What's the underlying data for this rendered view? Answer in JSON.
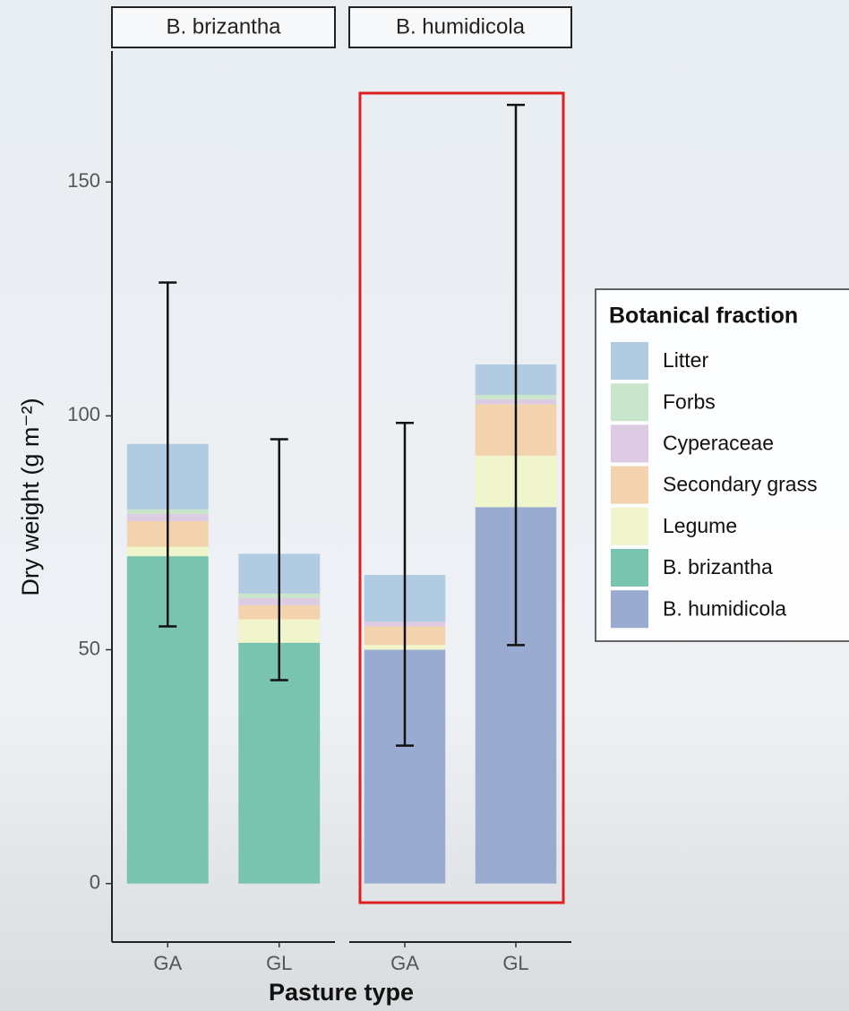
{
  "chart_data": {
    "type": "bar",
    "stacked": true,
    "facet_labels": [
      "B. brizantha",
      "B. humidicola"
    ],
    "categories": [
      "GA",
      "GL",
      "GA",
      "GL"
    ],
    "x_label": "Pasture type",
    "y_label": "Dry weight (g m⁻²)",
    "legend_title": "Botanical fraction",
    "legend_position": "right",
    "ylim": [
      -12.5,
      178
    ],
    "yticks": [
      0,
      50,
      100,
      150
    ],
    "series": [
      {
        "name": "Litter",
        "color": "#b0cbe2",
        "values": [
          14,
          8.5,
          10,
          6.5
        ]
      },
      {
        "name": "Forbs",
        "color": "#c9e6cd",
        "values": [
          1,
          1,
          0,
          1
        ]
      },
      {
        "name": "Cyperaceae",
        "color": "#dccbe3",
        "values": [
          1.5,
          1.5,
          1,
          1
        ]
      },
      {
        "name": "Secondary grass",
        "color": "#f2d3ad",
        "values": [
          5.5,
          3,
          4,
          11
        ]
      },
      {
        "name": "Legume",
        "color": "#f1f5cc",
        "values": [
          2,
          5,
          1,
          11
        ]
      },
      {
        "name": "B. brizantha",
        "color": "#78c4ae",
        "values": [
          70,
          51.5,
          0,
          0
        ]
      },
      {
        "name": "B. humidicola",
        "color": "#9aabd1",
        "values": [
          0,
          0,
          50,
          80.5
        ]
      }
    ],
    "error_bars": {
      "low": [
        55,
        43.5,
        29.5,
        51
      ],
      "high": [
        128.5,
        95,
        98.5,
        166.5
      ]
    }
  }
}
